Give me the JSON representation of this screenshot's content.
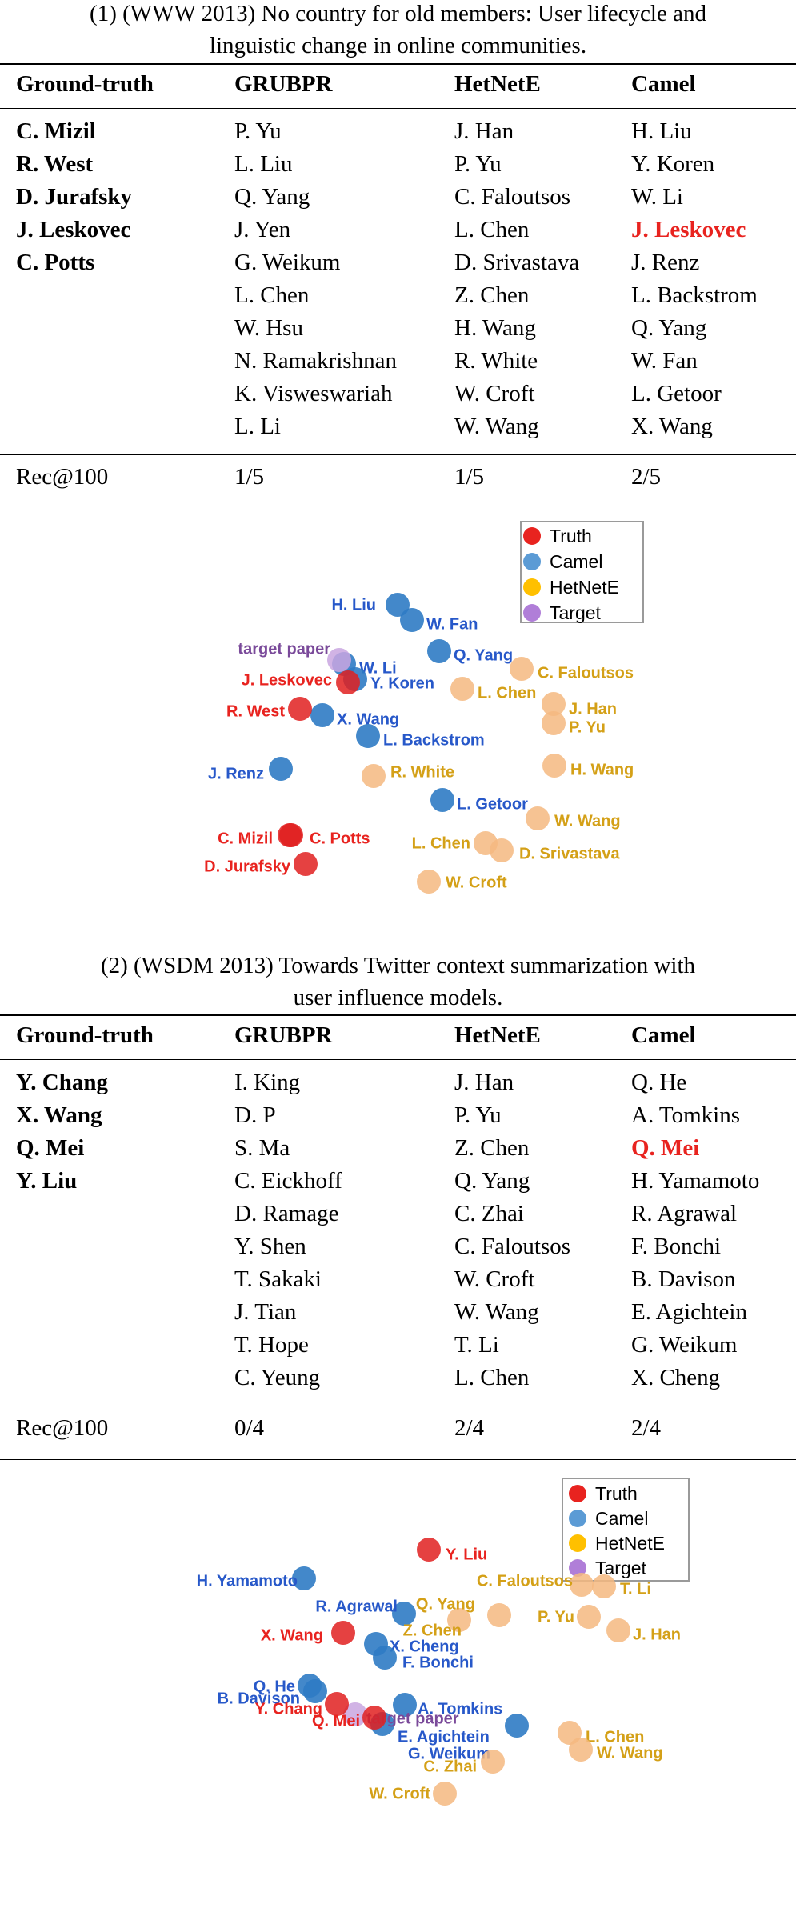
{
  "colors": {
    "truth": "#e02020",
    "camel": "#2f7bc4",
    "hetnete": "#f5b880",
    "target": "#c9a6e0",
    "truth_label": "#e8231f",
    "camel_label": "#2758c9",
    "hetnete_label": "#d4a017",
    "target_label": "#7a4a9a",
    "legend_truth": "#e8231f",
    "legend_camel": "#5b9bd5",
    "legend_hetnete": "#ffc000",
    "legend_target": "#b07ed8"
  },
  "legend": [
    "Truth",
    "Camel",
    "HetNetE",
    "Target"
  ],
  "sections": [
    {
      "title_line1": "(1) (WWW 2013) No country for old members: User lifecycle and",
      "title_line2": "linguistic change in online communities.",
      "headers": [
        "Ground-truth",
        "GRUBPR",
        "HetNetE",
        "Camel"
      ],
      "columns": [
        [
          "C. Mizil",
          "R. West",
          "D. Jurafsky",
          "J. Leskovec",
          "C. Potts"
        ],
        [
          "P. Yu",
          "L. Liu",
          "Q. Yang",
          "J. Yen",
          "G. Weikum",
          "L. Chen",
          "W. Hsu",
          "N. Ramakrishnan",
          "K. Visweswariah",
          "L. Li"
        ],
        [
          "J. Han",
          "P. Yu",
          "C. Faloutsos",
          "L. Chen",
          "D. Srivastava",
          "Z. Chen",
          "H. Wang",
          "R. White",
          "W. Croft",
          "W. Wang"
        ],
        [
          "H. Liu",
          "Y. Koren",
          "W. Li",
          "J. Leskovec",
          "J. Renz",
          "L. Backstrom",
          "Q. Yang",
          "W. Fan",
          "L. Getoor",
          "X. Wang"
        ]
      ],
      "hit_rows": [
        3
      ],
      "rec_label": "Rec@100",
      "rec_values": [
        "1/5",
        "1/5",
        "2/5"
      ],
      "plot_points": [
        {
          "label": "H. Liu",
          "group": "camel"
        },
        {
          "label": "W. Fan",
          "group": "camel"
        },
        {
          "label": "Q. Yang",
          "group": "camel"
        },
        {
          "label": "W. Li",
          "group": "camel"
        },
        {
          "label": "Y. Koren",
          "group": "camel"
        },
        {
          "label": "X. Wang",
          "group": "camel"
        },
        {
          "label": "L. Backstrom",
          "group": "camel"
        },
        {
          "label": "J. Renz",
          "group": "camel"
        },
        {
          "label": "L. Getoor",
          "group": "camel"
        },
        {
          "label": "target paper",
          "group": "target"
        },
        {
          "label": "J. Leskovec",
          "group": "truth"
        },
        {
          "label": "R. West",
          "group": "truth"
        },
        {
          "label": "C. Mizil",
          "group": "truth"
        },
        {
          "label": "C. Potts",
          "group": "truth"
        },
        {
          "label": "D. Jurafsky",
          "group": "truth"
        },
        {
          "label": "C. Faloutsos",
          "group": "hetnete"
        },
        {
          "label": "L. Chen",
          "group": "hetnete"
        },
        {
          "label": "J. Han",
          "group": "hetnete"
        },
        {
          "label": "P. Yu",
          "group": "hetnete"
        },
        {
          "label": "R. White",
          "group": "hetnete"
        },
        {
          "label": "H. Wang",
          "group": "hetnete"
        },
        {
          "label": "W. Wang",
          "group": "hetnete"
        },
        {
          "label": "L. Chen",
          "group": "hetnete"
        },
        {
          "label": "D. Srivastava",
          "group": "hetnete"
        },
        {
          "label": "W. Croft",
          "group": "hetnete"
        }
      ]
    },
    {
      "title_line1": "(2) (WSDM 2013) Towards Twitter context summarization with",
      "title_line2": "user influence models.",
      "headers": [
        "Ground-truth",
        "GRUBPR",
        "HetNetE",
        "Camel"
      ],
      "columns": [
        [
          "Y. Chang",
          "X. Wang",
          "Q. Mei",
          "Y. Liu"
        ],
        [
          "I. King",
          "D. P",
          "S. Ma",
          "C. Eickhoff",
          "D. Ramage",
          "Y. Shen",
          "T. Sakaki",
          "J. Tian",
          "T. Hope",
          "C. Yeung"
        ],
        [
          "J. Han",
          "P. Yu",
          "Z. Chen",
          "Q. Yang",
          "C. Zhai",
          "C. Faloutsos",
          "W. Croft",
          "W. Wang",
          "T. Li",
          "L. Chen"
        ],
        [
          "Q. He",
          "A. Tomkins",
          "Q. Mei",
          "H. Yamamoto",
          "R. Agrawal",
          "F. Bonchi",
          "B. Davison",
          "E. Agichtein",
          "G. Weikum",
          "X. Cheng"
        ]
      ],
      "hit_rows": [
        2
      ],
      "rec_label": "Rec@100",
      "rec_values": [
        "0/4",
        "2/4",
        "2/4"
      ],
      "plot_points": [
        {
          "label": "H. Yamamoto",
          "group": "camel"
        },
        {
          "label": "R. Agrawal",
          "group": "camel"
        },
        {
          "label": "X. Cheng",
          "group": "camel"
        },
        {
          "label": "F. Bonchi",
          "group": "camel"
        },
        {
          "label": "Q. He",
          "group": "camel"
        },
        {
          "label": "B. Davison",
          "group": "camel"
        },
        {
          "label": "A. Tomkins",
          "group": "camel"
        },
        {
          "label": "E. Agichtein",
          "group": "camel"
        },
        {
          "label": "G. Weikum",
          "group": "camel"
        },
        {
          "label": "target paper",
          "group": "target"
        },
        {
          "label": "Y. Liu",
          "group": "truth"
        },
        {
          "label": "X. Wang",
          "group": "truth"
        },
        {
          "label": "Y. Chang",
          "group": "truth"
        },
        {
          "label": "Q. Mei",
          "group": "truth"
        },
        {
          "label": "C. Faloutsos",
          "group": "hetnete"
        },
        {
          "label": "T. Li",
          "group": "hetnete"
        },
        {
          "label": "Q. Yang",
          "group": "hetnete"
        },
        {
          "label": "Z. Chen",
          "group": "hetnete"
        },
        {
          "label": "P. Yu",
          "group": "hetnete"
        },
        {
          "label": "J. Han",
          "group": "hetnete"
        },
        {
          "label": "L. Chen",
          "group": "hetnete"
        },
        {
          "label": "W. Wang",
          "group": "hetnete"
        },
        {
          "label": "C. Zhai",
          "group": "hetnete"
        },
        {
          "label": "W. Croft",
          "group": "hetnete"
        }
      ]
    }
  ]
}
